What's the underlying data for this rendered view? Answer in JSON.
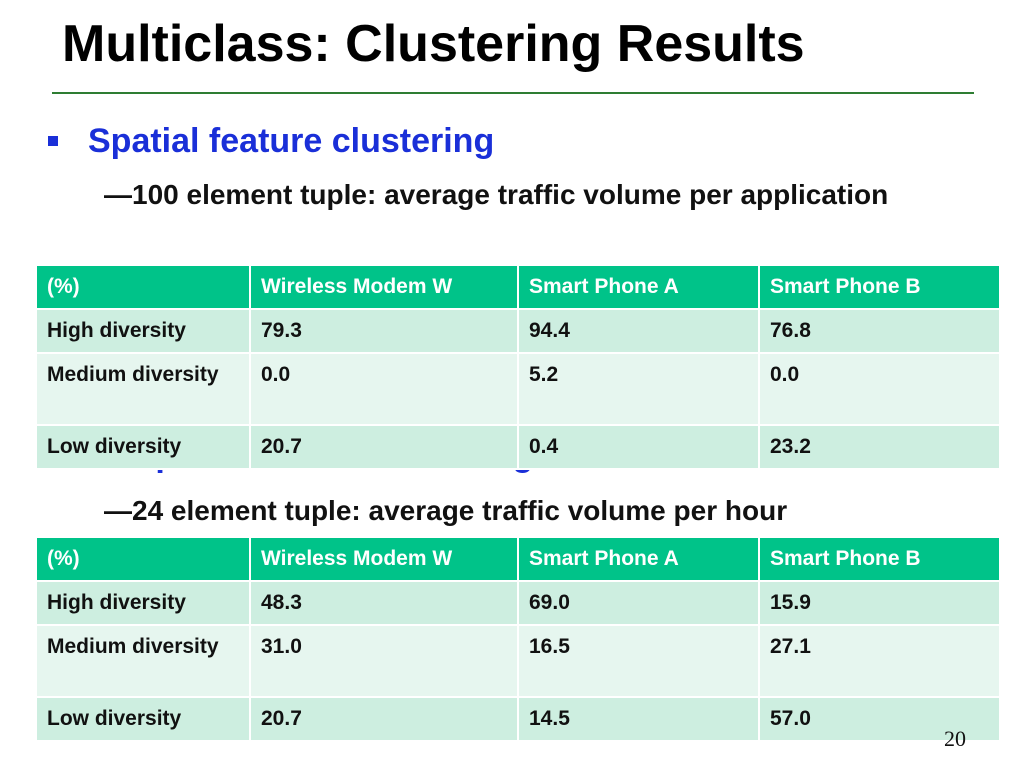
{
  "slide": {
    "title": "Multiclass: Clustering Results",
    "page_number": "20",
    "accent_color": "#1a2fd8",
    "header_color": "#00c389",
    "highlight_color": "#e8132a"
  },
  "sections": [
    {
      "heading": "Spatial feature clustering",
      "sub": "100 element tuple: average traffic volume per application",
      "table": {
        "headers": [
          "(%)",
          "Wireless Modem W",
          "Smart Phone A",
          "Smart Phone B"
        ],
        "rows": [
          [
            "High diversity",
            "79.3",
            "94.4",
            "76.8"
          ],
          [
            "Medium diversity",
            "0.0",
            "5.2",
            "0.0"
          ],
          [
            "Low diversity",
            "20.7",
            "0.4",
            "23.2"
          ]
        ],
        "highlights": [
          [
            0,
            2
          ]
        ]
      }
    },
    {
      "heading": "Temporal feature clustering",
      "sub": "24 element tuple: average traffic volume per hour",
      "table": {
        "headers": [
          "(%)",
          "Wireless Modem W",
          "Smart Phone A",
          "Smart Phone B"
        ],
        "rows": [
          [
            "High diversity",
            "48.3",
            "69.0",
            "15.9"
          ],
          [
            "Medium diversity",
            "31.0",
            "16.5",
            "27.1"
          ],
          [
            "Low diversity",
            "20.7",
            "14.5",
            "57.0"
          ]
        ],
        "highlights": [
          [
            0,
            1
          ],
          [
            0,
            2
          ],
          [
            2,
            3
          ]
        ]
      }
    }
  ]
}
